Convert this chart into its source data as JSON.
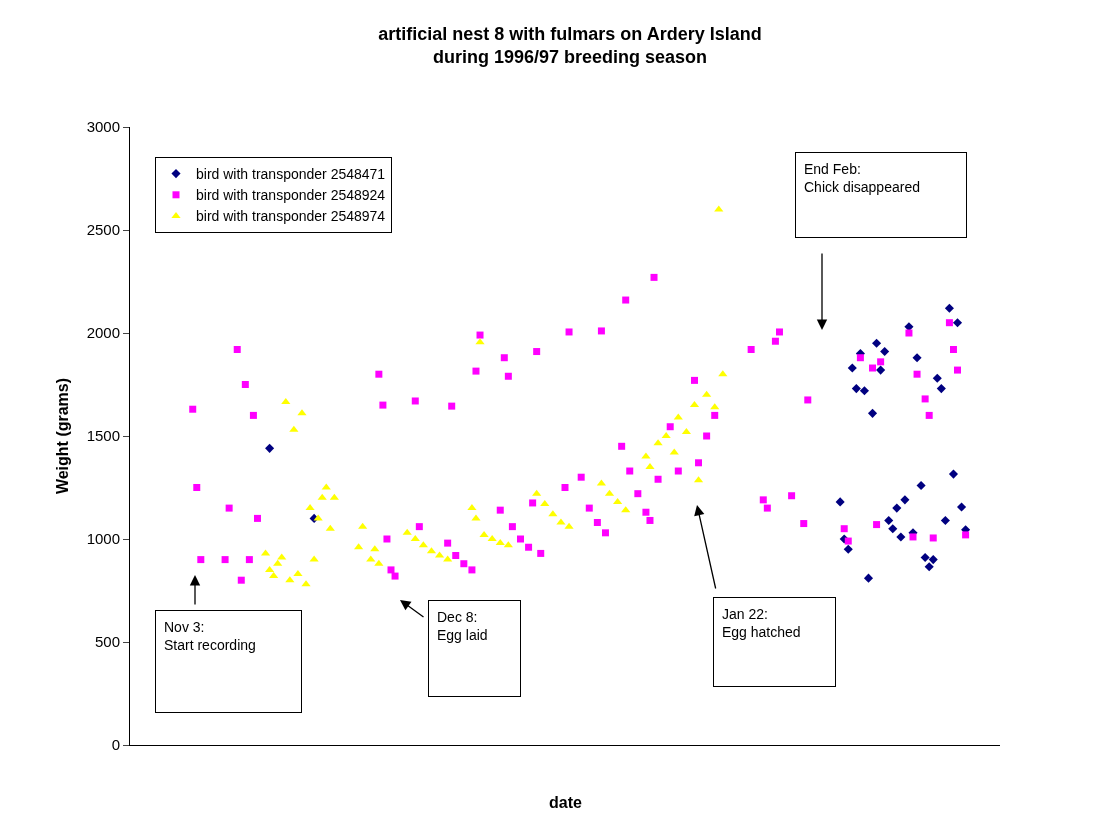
{
  "chart_data": {
    "type": "scatter",
    "title": "artificial nest 8 with fulmars on Ardery Island\nduring 1996/97 breeding season",
    "xlabel": "date",
    "ylabel": "Weight (grams)",
    "categories": [
      null,
      null,
      null,
      null,
      null,
      null,
      null,
      null,
      null,
      null,
      null,
      null,
      null,
      null,
      null,
      null,
      null,
      null,
      null,
      null,
      null,
      null,
      null,
      null,
      null,
      null,
      null,
      null,
      null,
      null,
      null,
      null,
      null,
      null,
      null,
      null,
      null,
      null,
      null,
      null,
      null,
      null,
      null,
      null,
      null,
      null,
      null,
      null,
      null,
      null,
      null,
      null,
      null,
      null,
      null,
      null,
      null,
      null,
      null,
      null,
      null,
      null,
      null,
      null,
      null,
      null,
      null,
      null,
      null,
      null,
      null,
      null,
      null,
      null,
      null,
      null,
      null,
      null,
      null,
      null,
      null,
      null,
      null,
      null,
      null,
      null,
      null,
      null,
      null,
      null,
      null,
      null,
      null,
      null,
      null,
      null,
      null,
      null,
      null,
      null,
      null,
      null,
      null,
      null,
      null,
      null,
      null,
      null,
      null,
      null,
      null,
      null,
      null,
      null,
      null,
      null,
      null,
      null,
      null,
      null,
      null,
      null,
      null,
      null,
      null,
      null,
      null,
      null,
      null,
      null,
      null,
      null,
      null,
      null,
      null,
      null,
      null,
      null,
      null,
      null,
      null,
      null,
      null,
      null,
      null,
      null,
      null,
      null,
      null,
      null,
      null,
      null,
      null,
      null,
      null,
      null,
      null,
      null,
      null,
      null,
      null,
      null,
      null,
      null,
      null,
      null,
      null,
      null,
      null,
      null,
      null,
      null,
      null,
      null,
      null,
      null,
      null,
      null,
      null,
      null,
      null,
      null,
      null,
      null,
      null,
      null,
      null,
      null,
      null,
      null,
      null,
      null,
      null,
      null,
      null,
      null,
      null,
      null,
      null,
      null,
      null,
      null,
      null,
      null,
      null,
      null,
      null,
      null,
      null,
      null,
      null,
      null,
      null,
      null,
      null
    ],
    "series": [
      {
        "name": "bird with transponder 2548471",
        "color": "#000080",
        "marker": "diamond",
        "values": [
          null,
          null,
          null,
          null,
          null,
          null,
          null,
          null,
          null,
          null,
          null,
          null,
          null,
          null,
          null,
          null,
          null,
          null,
          null,
          null,
          null,
          null,
          null,
          null,
          null,
          null,
          null,
          null,
          null,
          null,
          null,
          null,
          null,
          null,
          1440,
          null,
          null,
          null,
          null,
          null,
          null,
          null,
          null,
          null,
          null,
          1100,
          null,
          null,
          null,
          null,
          null,
          null,
          null,
          null,
          null,
          null,
          null,
          null,
          null,
          null,
          null,
          null,
          null,
          null,
          null,
          null,
          null,
          null,
          null,
          null,
          null,
          null,
          null,
          null,
          null,
          null,
          null,
          null,
          null,
          null,
          null,
          null,
          null,
          null,
          null,
          null,
          null,
          null,
          null,
          null,
          null,
          null,
          null,
          null,
          null,
          null,
          null,
          null,
          null,
          null,
          null,
          null,
          null,
          null,
          null,
          null,
          null,
          null,
          null,
          null,
          null,
          null,
          null,
          null,
          null,
          null,
          null,
          null,
          null,
          null,
          null,
          null,
          null,
          null,
          null,
          null,
          null,
          null,
          null,
          null,
          null,
          null,
          null,
          null,
          null,
          null,
          null,
          null,
          null,
          null,
          null,
          null,
          null,
          null,
          null,
          null,
          null,
          null,
          null,
          null,
          null,
          null,
          null,
          null,
          null,
          null,
          null,
          null,
          null,
          null,
          null,
          null,
          null,
          null,
          null,
          null,
          null,
          null,
          null,
          null,
          null,
          null,
          null,
          null,
          null,
          1180,
          1000,
          950,
          1830,
          1730,
          1900,
          1720,
          810,
          1610,
          1950,
          1820,
          1910,
          1090,
          1050,
          1150,
          1010,
          1190,
          2030,
          1030,
          1880,
          1260,
          910,
          865,
          900,
          1780,
          1730,
          1090,
          2120,
          1315,
          2050,
          1155,
          1045,
          null,
          null,
          null,
          null,
          null,
          null,
          null,
          null
        ]
      },
      {
        "name": "bird with transponder 2548924",
        "color": "#ff00ff",
        "marker": "square",
        "values": [
          null,
          null,
          null,
          null,
          null,
          null,
          null,
          null,
          null,
          null,
          null,
          null,
          null,
          null,
          null,
          1630,
          1250,
          900,
          null,
          null,
          null,
          null,
          null,
          900,
          1150,
          null,
          1920,
          800,
          1750,
          900,
          1600,
          1100,
          null,
          null,
          null,
          null,
          null,
          null,
          null,
          null,
          null,
          null,
          null,
          null,
          null,
          null,
          null,
          null,
          null,
          null,
          null,
          null,
          null,
          null,
          null,
          null,
          null,
          null,
          null,
          null,
          null,
          1800,
          1650,
          1000,
          850,
          820,
          null,
          null,
          null,
          null,
          1670,
          1060,
          null,
          null,
          null,
          null,
          null,
          null,
          980,
          1645,
          920,
          null,
          880,
          null,
          850,
          1815,
          1990,
          null,
          null,
          null,
          null,
          1140,
          1880,
          1790,
          1060,
          null,
          1000,
          null,
          960,
          1175,
          1910,
          930,
          null,
          null,
          null,
          null,
          null,
          1250,
          2005,
          null,
          null,
          1300,
          null,
          1150,
          null,
          1080,
          2010,
          1030,
          null,
          null,
          null,
          1450,
          2160,
          1330,
          null,
          1220,
          null,
          1130,
          1090,
          2270,
          1290,
          null,
          null,
          1545,
          null,
          1330,
          null,
          null,
          null,
          1770,
          1370,
          null,
          1500,
          null,
          1600,
          null,
          null,
          null,
          null,
          null,
          null,
          null,
          null,
          1920,
          null,
          null,
          1190,
          1150,
          null,
          1960,
          2005,
          null,
          null,
          1210,
          null,
          null,
          1075,
          1675,
          null,
          null,
          null,
          null,
          null,
          null,
          null,
          null,
          1050,
          990,
          null,
          null,
          1880,
          null,
          null,
          1830,
          1070,
          1860,
          null,
          null,
          null,
          null,
          null,
          null,
          2000,
          1010,
          1800,
          null,
          1680,
          1600,
          1005,
          null,
          null,
          null,
          2050,
          1920,
          1820,
          null,
          1020,
          null,
          null,
          null,
          null,
          null,
          null,
          null,
          null
        ]
      },
      {
        "name": "bird with transponder 2548974",
        "color": "#ffff00",
        "marker": "triangle",
        "values": [
          null,
          null,
          null,
          null,
          null,
          null,
          null,
          null,
          null,
          null,
          null,
          null,
          null,
          null,
          null,
          null,
          null,
          null,
          null,
          null,
          null,
          null,
          null,
          null,
          null,
          null,
          null,
          null,
          null,
          null,
          null,
          null,
          null,
          930,
          850,
          820,
          880,
          910,
          1665,
          800,
          1530,
          830,
          1610,
          780,
          1150,
          900,
          1100,
          1200,
          1250,
          1050,
          1200,
          null,
          null,
          null,
          null,
          null,
          960,
          1060,
          null,
          900,
          950,
          880,
          null,
          null,
          null,
          null,
          null,
          null,
          1030,
          null,
          1000,
          null,
          970,
          null,
          940,
          null,
          920,
          null,
          900,
          null,
          null,
          null,
          null,
          null,
          1150,
          1100,
          1955,
          1020,
          null,
          1000,
          null,
          980,
          null,
          970,
          null,
          null,
          null,
          null,
          null,
          null,
          1220,
          null,
          1170,
          null,
          1120,
          null,
          1080,
          null,
          1060,
          null,
          null,
          null,
          null,
          null,
          null,
          null,
          1270,
          null,
          1220,
          null,
          1180,
          null,
          1140,
          null,
          null,
          null,
          null,
          1400,
          1350,
          null,
          1465,
          null,
          1500,
          null,
          1420,
          1590,
          null,
          1520,
          null,
          1650,
          1285,
          null,
          1700,
          null,
          1640,
          2600,
          1800,
          null,
          null,
          null,
          null,
          null,
          null,
          null,
          null,
          null,
          null,
          null,
          null,
          null,
          null,
          null,
          null,
          null,
          null,
          null,
          null,
          null,
          null,
          null,
          null,
          null,
          null,
          null,
          null,
          null,
          null,
          null,
          null,
          null,
          null,
          null,
          null,
          null,
          null,
          null,
          null,
          null,
          null,
          null,
          null,
          null,
          null,
          null,
          null,
          null,
          null,
          null,
          null,
          null,
          null,
          null,
          null,
          null,
          null,
          null,
          null,
          null,
          null,
          null,
          null,
          null,
          null,
          null,
          null
        ]
      }
    ],
    "ylim": [
      0,
      3000
    ],
    "yticks": [
      0,
      500,
      1000,
      1500,
      2000,
      2500,
      3000
    ],
    "grid": false,
    "legend": "top left",
    "tick_labels": "y",
    "annotations": [
      "Nov 3:\nStart recording",
      "Dec 8:\nEgg laid",
      "Jan 22:\nEgg hatched",
      "End Feb:\nChick disappeared"
    ]
  }
}
